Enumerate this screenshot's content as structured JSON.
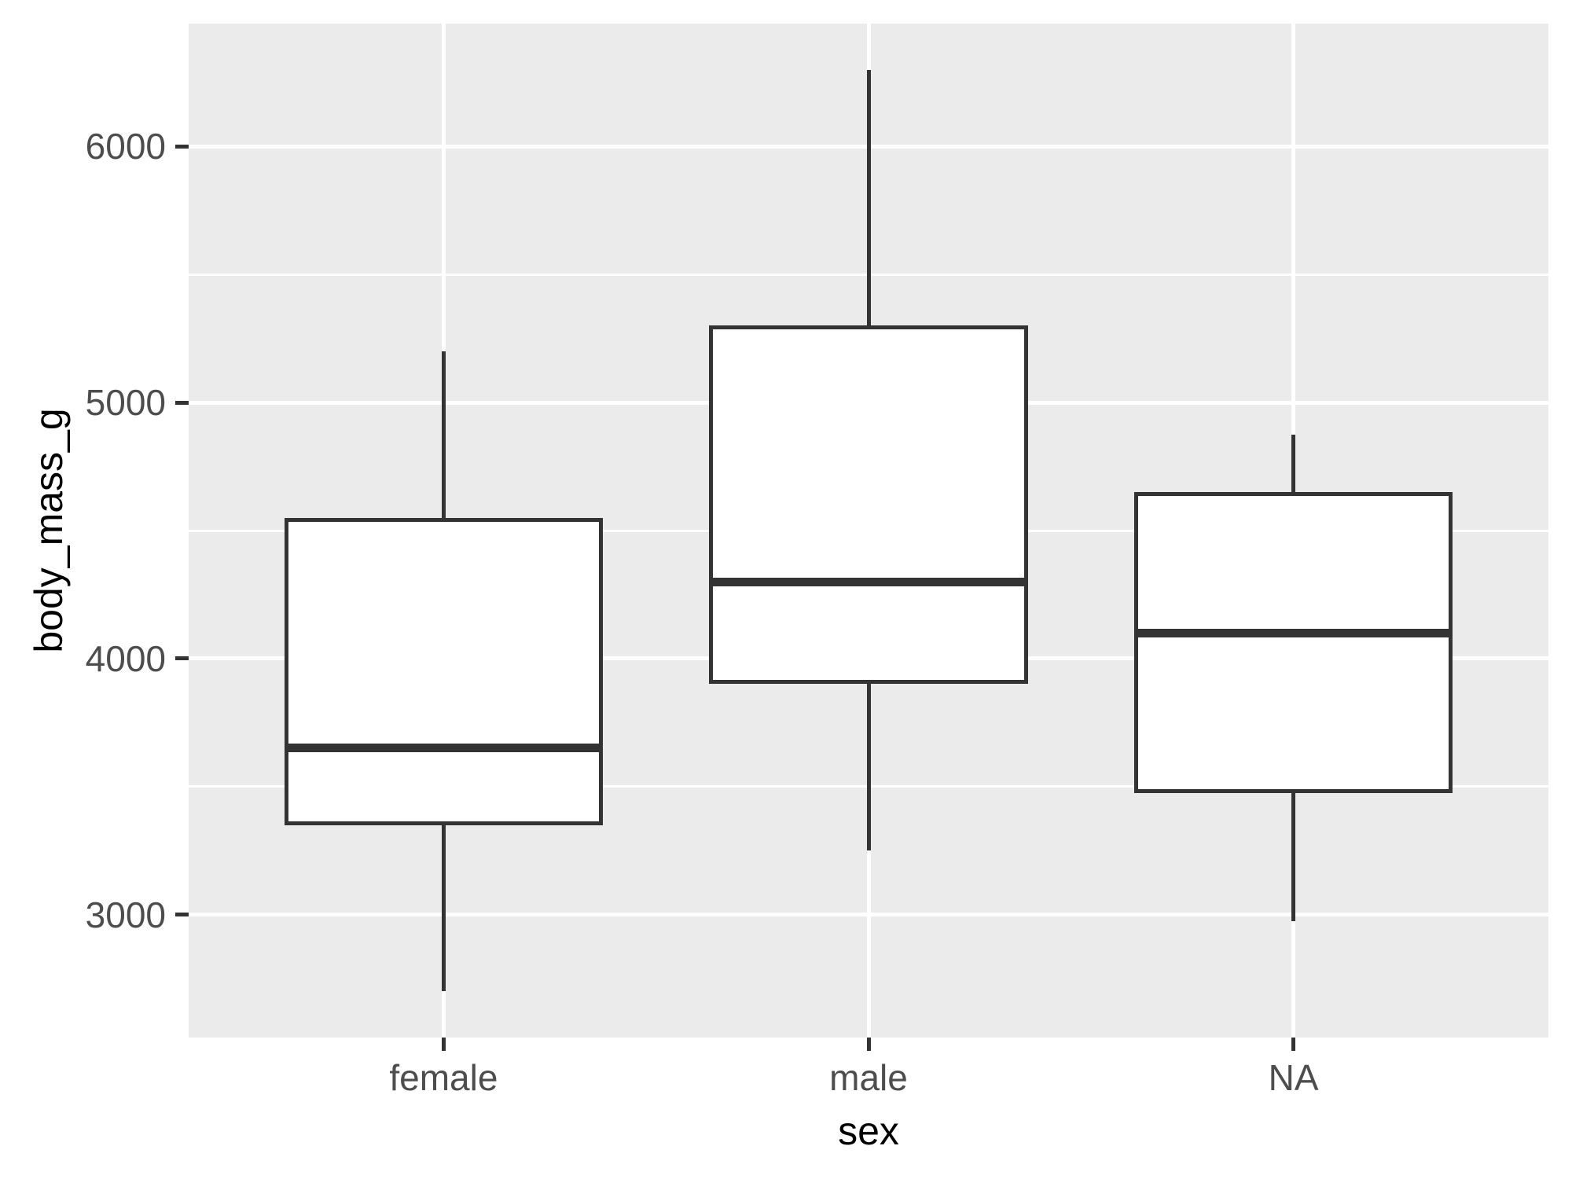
{
  "figure": {
    "background": "#FFFFFF"
  },
  "chart_data": {
    "type": "boxplot",
    "title": "",
    "xlabel": "sex",
    "ylabel": "body_mass_g",
    "categories": [
      "female",
      "male",
      "NA"
    ],
    "y_axis": {
      "tick_values": [
        3000,
        4000,
        5000,
        6000
      ],
      "tick_labels": [
        "3000",
        "4000",
        "5000",
        "6000"
      ],
      "minor_gridline_values": [
        3500,
        4500,
        5500
      ],
      "ylim": [
        2520,
        6480
      ]
    },
    "series": [
      {
        "category": "female",
        "whisker_low": 2700,
        "q1": 3350,
        "median": 3650,
        "q3": 4550,
        "whisker_high": 5200
      },
      {
        "category": "male",
        "whisker_low": 3250,
        "q1": 3900,
        "median": 4300,
        "q3": 5300,
        "whisker_high": 6300
      },
      {
        "category": "NA",
        "whisker_low": 2975,
        "q1": 3475,
        "median": 4100,
        "q3": 4650,
        "whisker_high": 4875
      }
    ],
    "layout_hints": {
      "grid": "on",
      "legend_position": "none",
      "box_width_fraction": 0.75
    },
    "style": {
      "panel_background": "#EBEBEB",
      "gridline_color": "#FFFFFF",
      "box_fill": "#FFFFFF",
      "box_border_color": "#333333",
      "median_color": "#333333",
      "whisker_color": "#333333",
      "axis_tick_color": "#333333",
      "axis_text_color": "#4D4D4D",
      "axis_title_color": "#000000"
    }
  }
}
